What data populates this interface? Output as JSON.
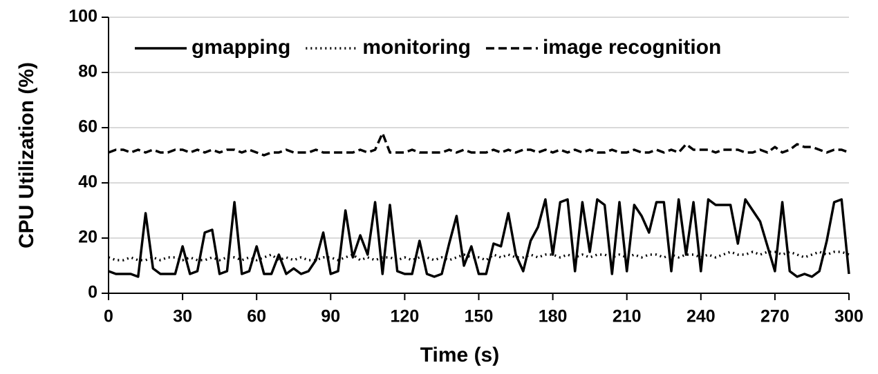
{
  "chart_data": {
    "type": "line",
    "x_label": "Time (s)",
    "y_label": "CPU Utilization (%)",
    "x": [
      0,
      3,
      6,
      9,
      12,
      15,
      18,
      21,
      24,
      27,
      30,
      33,
      36,
      39,
      42,
      45,
      48,
      51,
      54,
      57,
      60,
      63,
      66,
      69,
      72,
      75,
      78,
      81,
      84,
      87,
      90,
      93,
      96,
      99,
      102,
      105,
      108,
      111,
      114,
      117,
      120,
      123,
      126,
      129,
      132,
      135,
      138,
      141,
      144,
      147,
      150,
      153,
      156,
      159,
      162,
      165,
      168,
      171,
      174,
      177,
      180,
      183,
      186,
      189,
      192,
      195,
      198,
      201,
      204,
      207,
      210,
      213,
      216,
      219,
      222,
      225,
      228,
      231,
      234,
      237,
      240,
      243,
      246,
      249,
      252,
      255,
      258,
      261,
      264,
      267,
      270,
      273,
      276,
      279,
      282,
      285,
      288,
      291,
      294,
      297,
      300
    ],
    "series": [
      {
        "name": "gmapping",
        "color": "#000000",
        "dash": "solid",
        "values": [
          8,
          7,
          7,
          7,
          6,
          29,
          9,
          7,
          7,
          7,
          17,
          7,
          8,
          22,
          23,
          7,
          8,
          33,
          7,
          8,
          17,
          7,
          7,
          14,
          7,
          9,
          7,
          8,
          12,
          22,
          7,
          8,
          30,
          13,
          21,
          14,
          33,
          7,
          32,
          8,
          7,
          7,
          19,
          7,
          6,
          7,
          18,
          28,
          10,
          17,
          7,
          7,
          18,
          17,
          29,
          14,
          8,
          19,
          24,
          34,
          14,
          33,
          34,
          8,
          33,
          15,
          34,
          32,
          7,
          33,
          8,
          32,
          28,
          22,
          33,
          33,
          8,
          34,
          14,
          33,
          8,
          34,
          32,
          32,
          32,
          18,
          34,
          30,
          26,
          17,
          8,
          33,
          8,
          6,
          7,
          6,
          8,
          19,
          33,
          34,
          7
        ]
      },
      {
        "name": "monitoring",
        "color": "#000000",
        "dash": "dot",
        "values": [
          13,
          12,
          12,
          13,
          12,
          12,
          13,
          12,
          13,
          13,
          12,
          13,
          12,
          12,
          13,
          12,
          13,
          13,
          12,
          13,
          12,
          13,
          14,
          12,
          13,
          12,
          13,
          12,
          12,
          13,
          13,
          12,
          13,
          14,
          12,
          13,
          12,
          13,
          13,
          12,
          13,
          12,
          13,
          13,
          12,
          13,
          12,
          13,
          14,
          13,
          13,
          12,
          14,
          13,
          14,
          13,
          13,
          14,
          13,
          14,
          14,
          13,
          14,
          13,
          14,
          13,
          14,
          14,
          13,
          14,
          13,
          14,
          13,
          14,
          14,
          13,
          14,
          13,
          14,
          14,
          13,
          14,
          13,
          14,
          15,
          14,
          14,
          15,
          14,
          15,
          15,
          14,
          15,
          14,
          13,
          14,
          15,
          14,
          15,
          15,
          14
        ]
      },
      {
        "name": "image recognition",
        "color": "#000000",
        "dash": "dash",
        "values": [
          51,
          52,
          52,
          51,
          52,
          51,
          52,
          51,
          51,
          52,
          52,
          51,
          52,
          51,
          52,
          51,
          52,
          52,
          51,
          52,
          51,
          50,
          51,
          51,
          52,
          51,
          51,
          51,
          52,
          51,
          51,
          51,
          51,
          51,
          52,
          51,
          52,
          58,
          51,
          51,
          51,
          52,
          51,
          51,
          51,
          51,
          52,
          51,
          52,
          51,
          51,
          51,
          52,
          51,
          52,
          51,
          52,
          52,
          51,
          52,
          51,
          52,
          51,
          52,
          51,
          52,
          51,
          51,
          52,
          51,
          51,
          52,
          51,
          51,
          52,
          51,
          52,
          51,
          54,
          52,
          52,
          52,
          51,
          52,
          52,
          52,
          51,
          51,
          52,
          51,
          53,
          51,
          52,
          54,
          53,
          53,
          52,
          51,
          52,
          52,
          51
        ]
      }
    ],
    "xlim": [
      0,
      300
    ],
    "xticks": [
      0,
      30,
      60,
      90,
      120,
      150,
      180,
      210,
      240,
      270,
      300
    ],
    "ylim": [
      0,
      100
    ],
    "yticks": [
      0,
      20,
      40,
      60,
      80,
      100
    ],
    "grid": true,
    "legend": "top"
  }
}
